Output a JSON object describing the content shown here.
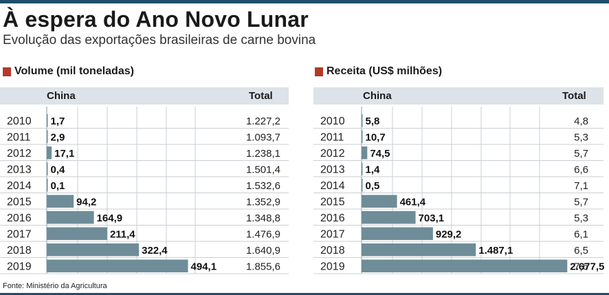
{
  "title": "À espera do Ano Novo Lunar",
  "subtitle": "Evolução das exportações brasileiras de carne bovina",
  "source": "Fonte: Ministério da Agricultura",
  "colors": {
    "accent_square": "#b33a27",
    "bar": "#6e8d99",
    "header_band": "#dde3e8",
    "rule": "#1f4e6b",
    "gridline": "#c9cfd4"
  },
  "chart_data": [
    {
      "type": "bar",
      "title": "Volume (mil toneladas)",
      "col_china": "China",
      "col_total": "Total",
      "categories": [
        "2010",
        "2011",
        "2012",
        "2013",
        "2014",
        "2015",
        "2016",
        "2017",
        "2018",
        "2019"
      ],
      "series": [
        {
          "name": "China",
          "values": [
            1.7,
            2.9,
            17.1,
            0.4,
            0.1,
            94.2,
            164.9,
            211.4,
            322.4,
            494.1
          ]
        }
      ],
      "value_labels": [
        "1,7",
        "2,9",
        "17,1",
        "0,4",
        "0,1",
        "94,2",
        "164,9",
        "211,4",
        "322,4",
        "494,1"
      ],
      "totals": [
        "1.227,2",
        "1.093,7",
        "1.238,1",
        "1.501,4",
        "1.532,6",
        "1.352,9",
        "1.348,8",
        "1.476,9",
        "1.640,9",
        "1.855,6"
      ],
      "xlim": [
        0,
        500
      ],
      "grid": true
    },
    {
      "type": "bar",
      "title": "Receita (US$ milhões)",
      "col_china": "China",
      "col_total": "Total",
      "categories": [
        "2010",
        "2011",
        "2012",
        "2013",
        "2014",
        "2015",
        "2016",
        "2017",
        "2018",
        "2019"
      ],
      "series": [
        {
          "name": "China",
          "values": [
            5.8,
            10.7,
            74.5,
            1.4,
            0.5,
            461.4,
            703.1,
            929.2,
            1487.1,
            2677.5
          ]
        }
      ],
      "value_labels": [
        "5,8",
        "10,7",
        "74,5",
        "1,4",
        "0,5",
        "461,4",
        "703,1",
        "929,2",
        "1.487,1",
        "2.677,5"
      ],
      "totals": [
        "4,8",
        "5,3",
        "5,7",
        "6,6",
        "7,1",
        "5,7",
        "5,3",
        "6,1",
        "6,5",
        "7,6"
      ],
      "xlim": [
        0,
        2800
      ],
      "grid": true
    }
  ]
}
